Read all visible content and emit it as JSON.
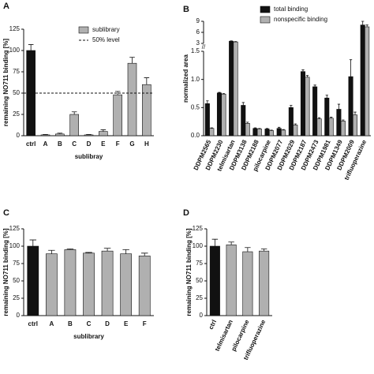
{
  "chart_data": [
    {
      "type": "bar",
      "panel": "A",
      "ylabel": "remaining NO711 binding [%]",
      "xlabel": "sublibray",
      "categories": [
        "ctrl",
        "A",
        "B",
        "C",
        "D",
        "E",
        "F",
        "G",
        "H"
      ],
      "series": [
        {
          "name": "sublibrary",
          "color": "#b0b0b0",
          "colors": [
            "#111111",
            "#b0b0b0",
            "#b0b0b0",
            "#b0b0b0",
            "#b0b0b0",
            "#b0b0b0",
            "#b0b0b0",
            "#b0b0b0",
            "#b0b0b0"
          ],
          "values": [
            100,
            1,
            2,
            25,
            1,
            5,
            48,
            85,
            60
          ],
          "errors": [
            7,
            0.5,
            1,
            3,
            0.5,
            2,
            4,
            7,
            8
          ]
        }
      ],
      "refline": {
        "name": "50% level",
        "value": 50
      },
      "ylim": [
        0,
        125
      ],
      "yticks": [
        0,
        25,
        50,
        75,
        100,
        125
      ]
    },
    {
      "type": "bar",
      "panel": "B",
      "ylabel": "normalized area",
      "categories": [
        "DDPM2565",
        "DDPM2230",
        "telmisartan",
        "DDPM3138",
        "DDPM2188",
        "pilocarpine",
        "DDPM2077",
        "DDPM2029",
        "DDPM2187",
        "DDPM2473",
        "DDPM1981",
        "DDPM1349",
        "DDPM2009",
        "trifluoperazine"
      ],
      "series": [
        {
          "name": "total binding",
          "color": "#111111",
          "values": [
            0.57,
            0.76,
            3.6,
            0.54,
            0.13,
            0.12,
            0.13,
            0.5,
            1.14,
            0.87,
            0.67,
            0.47,
            1.05,
            8
          ],
          "errors": [
            0.05,
            0.01,
            0.1,
            0.05,
            0.01,
            0.01,
            0.02,
            0.04,
            0.03,
            0.03,
            0.05,
            0.09,
            0.3,
            1
          ]
        },
        {
          "name": "nonspecific binding",
          "color": "#b0b0b0",
          "values": [
            0.13,
            0.74,
            3.4,
            0.22,
            0.12,
            0.09,
            0.1,
            0.19,
            1.04,
            0.3,
            0.31,
            0.26,
            0.37,
            7.5
          ],
          "errors": [
            0.01,
            0.01,
            0.1,
            0.02,
            0.01,
            0.01,
            0.01,
            0.02,
            0.03,
            0.02,
            0.02,
            0.02,
            0.05,
            0.5
          ]
        }
      ],
      "ylim": [
        0,
        9
      ],
      "axis_break": [
        1.5,
        3
      ],
      "yticks": [
        {
          "value": 0,
          "label": "0.0"
        },
        0.5,
        {
          "value": 1,
          "label": "1.0"
        },
        1.5,
        3,
        6,
        9
      ]
    },
    {
      "type": "bar",
      "panel": "C",
      "ylabel": "remaining NO711 binding [%]",
      "xlabel": "sublibrary",
      "categories": [
        "ctrl",
        "A",
        "B",
        "C",
        "D",
        "E",
        "F"
      ],
      "series": [
        {
          "colors": [
            "#111111",
            "#b0b0b0",
            "#b0b0b0",
            "#b0b0b0",
            "#b0b0b0",
            "#b0b0b0",
            "#b0b0b0"
          ],
          "values": [
            100,
            89,
            95,
            90,
            93,
            89,
            86
          ],
          "errors": [
            9,
            5,
            1,
            1,
            4,
            6,
            4
          ]
        }
      ],
      "ylim": [
        0,
        125
      ],
      "yticks": [
        0,
        25,
        50,
        75,
        100,
        125
      ]
    },
    {
      "type": "bar",
      "panel": "D",
      "ylabel": "remaining NO711 binding [%]",
      "categories": [
        "ctrl",
        "telmisartan",
        "pilocarpine",
        "trifluoperazine"
      ],
      "series": [
        {
          "colors": [
            "#111111",
            "#b0b0b0",
            "#b0b0b0",
            "#b0b0b0"
          ],
          "values": [
            100,
            102,
            92,
            93
          ],
          "errors": [
            10,
            4,
            6,
            3
          ]
        }
      ],
      "ylim": [
        0,
        125
      ],
      "yticks": [
        0,
        25,
        50,
        75,
        100,
        125
      ]
    }
  ]
}
